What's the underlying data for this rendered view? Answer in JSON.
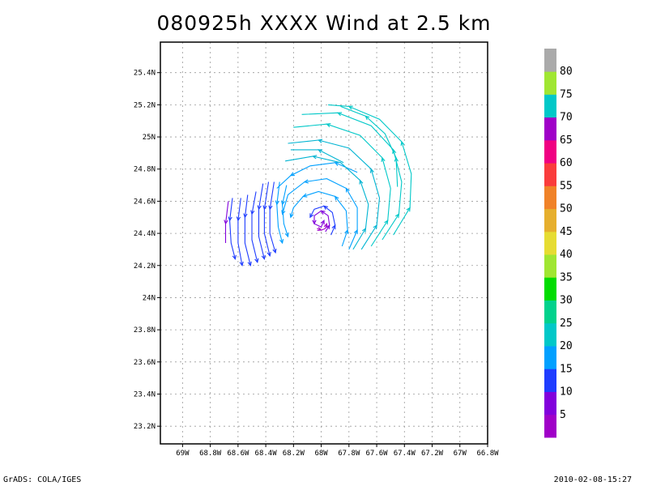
{
  "title": "080925h XXXX Wind at 2.5 km",
  "footer": {
    "left": "GrADS: COLA/IGES",
    "right": "2010-02-08-15:27"
  },
  "chart_data": {
    "type": "streamline",
    "title": "080925h XXXX Wind at 2.5 km",
    "xlabel": "",
    "ylabel": "",
    "xlim": [
      -69.16,
      -66.8
    ],
    "ylim": [
      23.09,
      25.59
    ],
    "grid": true,
    "x_ticks": [
      {
        "value": -69.0,
        "label": "69W"
      },
      {
        "value": -68.8,
        "label": "68.8W"
      },
      {
        "value": -68.6,
        "label": "68.6W"
      },
      {
        "value": -68.4,
        "label": "68.4W"
      },
      {
        "value": -68.2,
        "label": "68.2W"
      },
      {
        "value": -68.0,
        "label": "68W"
      },
      {
        "value": -67.8,
        "label": "67.8W"
      },
      {
        "value": -67.6,
        "label": "67.6W"
      },
      {
        "value": -67.4,
        "label": "67.4W"
      },
      {
        "value": -67.2,
        "label": "67.2W"
      },
      {
        "value": -67.0,
        "label": "67W"
      },
      {
        "value": -66.8,
        "label": "66.8W"
      }
    ],
    "y_ticks": [
      {
        "value": 23.2,
        "label": "23.2N"
      },
      {
        "value": 23.4,
        "label": "23.4N"
      },
      {
        "value": 23.6,
        "label": "23.6N"
      },
      {
        "value": 23.8,
        "label": "23.8N"
      },
      {
        "value": 24.0,
        "label": "24N"
      },
      {
        "value": 24.2,
        "label": "24.2N"
      },
      {
        "value": 24.4,
        "label": "24.4N"
      },
      {
        "value": 24.6,
        "label": "24.6N"
      },
      {
        "value": 24.8,
        "label": "24.8N"
      },
      {
        "value": 25.0,
        "label": "25N"
      },
      {
        "value": 25.2,
        "label": "25.2N"
      },
      {
        "value": 25.4,
        "label": "25.4N"
      }
    ],
    "colorbar": {
      "colors": [
        "#a000c8",
        "#8200dc",
        "#1e3cff",
        "#00a0ff",
        "#00c8c8",
        "#00d28c",
        "#00dc00",
        "#a0e632",
        "#e6dc32",
        "#e6af2d",
        "#f08228",
        "#fa3c3c",
        "#f00082",
        "#a000c8",
        "#00c8c8",
        "#a0e632",
        "#aaaaaa"
      ],
      "labels": [
        "5",
        "10",
        "15",
        "20",
        "25",
        "30",
        "35",
        "40",
        "45",
        "50",
        "55",
        "60",
        "65",
        "70",
        "75",
        "80"
      ]
    },
    "vortex_center": {
      "lon": -67.98,
      "lat": 24.49
    },
    "streamlines": [
      {
        "color": "#a000c8",
        "points": [
          [
            -68.03,
            24.43
          ],
          [
            -68.0,
            24.42
          ],
          [
            -67.97,
            24.43
          ],
          [
            -67.96,
            24.46
          ]
        ]
      },
      {
        "color": "#8200dc",
        "points": [
          [
            -67.97,
            24.41
          ],
          [
            -67.94,
            24.45
          ],
          [
            -67.95,
            24.51
          ],
          [
            -68.0,
            24.54
          ],
          [
            -68.05,
            24.51
          ],
          [
            -68.05,
            24.46
          ],
          [
            -68.0,
            24.44
          ],
          [
            -67.98,
            24.48
          ]
        ]
      },
      {
        "color": "#1e3cff",
        "points": [
          [
            -67.93,
            24.39
          ],
          [
            -67.9,
            24.45
          ],
          [
            -67.92,
            24.53
          ],
          [
            -67.98,
            24.57
          ],
          [
            -68.05,
            24.55
          ],
          [
            -68.08,
            24.5
          ]
        ]
      },
      {
        "color": "#00a0ff",
        "points": [
          [
            -67.85,
            24.32
          ],
          [
            -67.81,
            24.42
          ],
          [
            -67.82,
            24.54
          ],
          [
            -67.9,
            24.63
          ],
          [
            -68.02,
            24.66
          ],
          [
            -68.13,
            24.63
          ],
          [
            -68.2,
            24.56
          ],
          [
            -68.22,
            24.5
          ]
        ]
      },
      {
        "color": "#00a0ff",
        "points": [
          [
            -67.8,
            24.3
          ],
          [
            -67.74,
            24.42
          ],
          [
            -67.74,
            24.56
          ],
          [
            -67.82,
            24.68
          ],
          [
            -67.96,
            24.74
          ],
          [
            -68.12,
            24.72
          ],
          [
            -68.24,
            24.64
          ],
          [
            -68.28,
            24.52
          ]
        ]
      },
      {
        "color": "#00a0ff",
        "points": [
          [
            -67.74,
            24.78
          ],
          [
            -67.9,
            24.84
          ],
          [
            -68.08,
            24.82
          ],
          [
            -68.22,
            24.76
          ],
          [
            -68.32,
            24.68
          ]
        ]
      },
      {
        "color": "#00b4d2",
        "points": [
          [
            -67.77,
            24.3
          ],
          [
            -67.68,
            24.43
          ],
          [
            -67.66,
            24.58
          ],
          [
            -67.72,
            24.73
          ],
          [
            -67.86,
            24.84
          ],
          [
            -68.06,
            24.88
          ],
          [
            -68.26,
            24.85
          ]
        ]
      },
      {
        "color": "#00b4d2",
        "points": [
          [
            -67.71,
            24.3
          ],
          [
            -67.6,
            24.45
          ],
          [
            -67.58,
            24.62
          ],
          [
            -67.64,
            24.8
          ],
          [
            -67.8,
            24.93
          ],
          [
            -68.02,
            24.98
          ],
          [
            -68.24,
            24.96
          ]
        ]
      },
      {
        "color": "#00c8c8",
        "points": [
          [
            -67.64,
            24.32
          ],
          [
            -67.52,
            24.48
          ],
          [
            -67.5,
            24.68
          ],
          [
            -67.56,
            24.87
          ],
          [
            -67.72,
            25.01
          ],
          [
            -67.96,
            25.08
          ],
          [
            -68.2,
            25.06
          ]
        ]
      },
      {
        "color": "#00c8c8",
        "points": [
          [
            -67.56,
            24.36
          ],
          [
            -67.44,
            24.52
          ],
          [
            -67.42,
            24.72
          ],
          [
            -67.48,
            24.92
          ],
          [
            -67.64,
            25.07
          ],
          [
            -67.88,
            25.15
          ],
          [
            -68.14,
            25.14
          ]
        ]
      },
      {
        "color": "#00c8c8",
        "points": [
          [
            -67.48,
            24.39
          ],
          [
            -67.36,
            24.56
          ],
          [
            -67.35,
            24.77
          ],
          [
            -67.42,
            24.97
          ],
          [
            -67.58,
            25.11
          ],
          [
            -67.8,
            25.19
          ],
          [
            -67.95,
            25.2
          ]
        ]
      },
      {
        "color": "#00c8c8",
        "points": [
          [
            -67.45,
            24.69
          ],
          [
            -67.46,
            24.87
          ],
          [
            -67.54,
            25.02
          ],
          [
            -67.68,
            25.13
          ],
          [
            -67.86,
            25.19
          ]
        ]
      },
      {
        "color": "#00b4d2",
        "points": [
          [
            -67.84,
            24.84
          ],
          [
            -68.02,
            24.92
          ],
          [
            -68.22,
            24.92
          ]
        ]
      },
      {
        "color": "#1e3cff",
        "points": [
          [
            -68.34,
            24.72
          ],
          [
            -68.37,
            24.55
          ],
          [
            -68.37,
            24.4
          ],
          [
            -68.33,
            24.28
          ]
        ]
      },
      {
        "color": "#1e3cff",
        "points": [
          [
            -68.38,
            24.72
          ],
          [
            -68.41,
            24.55
          ],
          [
            -68.41,
            24.4
          ],
          [
            -68.37,
            24.26
          ]
        ]
      },
      {
        "color": "#1e3cff",
        "points": [
          [
            -68.42,
            24.71
          ],
          [
            -68.45,
            24.55
          ],
          [
            -68.45,
            24.38
          ],
          [
            -68.41,
            24.24
          ]
        ]
      },
      {
        "color": "#1e3cff",
        "points": [
          [
            -68.47,
            24.66
          ],
          [
            -68.5,
            24.52
          ],
          [
            -68.5,
            24.36
          ],
          [
            -68.46,
            24.22
          ]
        ]
      },
      {
        "color": "#1e3cff",
        "points": [
          [
            -68.53,
            24.64
          ],
          [
            -68.55,
            24.5
          ],
          [
            -68.55,
            24.34
          ],
          [
            -68.51,
            24.2
          ]
        ]
      },
      {
        "color": "#1e3cff",
        "points": [
          [
            -68.58,
            24.62
          ],
          [
            -68.6,
            24.48
          ],
          [
            -68.6,
            24.34
          ],
          [
            -68.57,
            24.2
          ]
        ]
      },
      {
        "color": "#1e3cff",
        "points": [
          [
            -68.64,
            24.62
          ],
          [
            -68.66,
            24.48
          ],
          [
            -68.65,
            24.34
          ],
          [
            -68.62,
            24.24
          ]
        ]
      },
      {
        "color": "#8200dc",
        "points": [
          [
            -68.67,
            24.6
          ],
          [
            -68.69,
            24.46
          ],
          [
            -68.69,
            24.34
          ]
        ]
      },
      {
        "color": "#00a0ff",
        "points": [
          [
            -68.25,
            24.7
          ],
          [
            -68.28,
            24.58
          ],
          [
            -68.27,
            24.46
          ],
          [
            -68.24,
            24.38
          ]
        ]
      },
      {
        "color": "#00a0ff",
        "points": [
          [
            -68.3,
            24.72
          ],
          [
            -68.32,
            24.58
          ],
          [
            -68.31,
            24.44
          ],
          [
            -68.28,
            24.34
          ]
        ]
      }
    ]
  }
}
